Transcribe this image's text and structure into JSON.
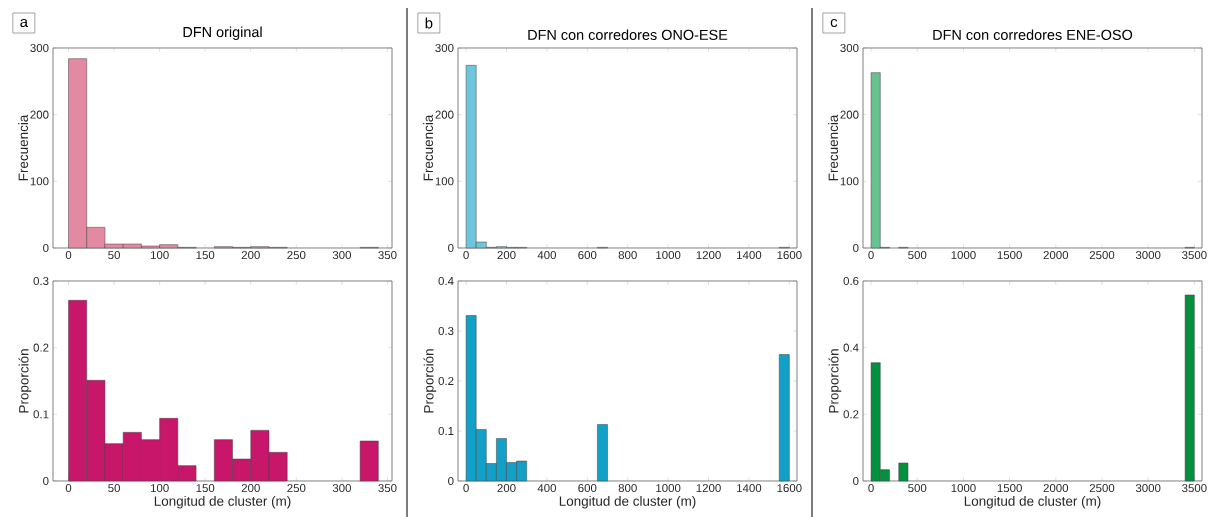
{
  "chart_data": [
    {
      "type": "histogram",
      "title": "DFN original",
      "annotations": [
        "a"
      ],
      "ylabel": "Frecuencia",
      "color": "#e38aa2",
      "bins": [
        0,
        20,
        40,
        60,
        80,
        100,
        120,
        140,
        160,
        180,
        200,
        220,
        240,
        260,
        280,
        300,
        320,
        340
      ],
      "values": [
        284,
        31,
        6,
        6,
        3,
        5,
        1,
        0,
        2,
        1,
        2,
        1,
        0,
        0,
        0,
        0,
        1
      ],
      "xlim": [
        -17,
        355
      ],
      "ylim": [
        0,
        300
      ],
      "xticks": [
        0,
        50,
        100,
        150,
        200,
        250,
        300,
        350
      ],
      "yticks": [
        0,
        100,
        200,
        300
      ]
    },
    {
      "type": "histogram",
      "title": "DFN con corredores ONO-ESE",
      "annotations": [
        "b"
      ],
      "ylabel": "Frecuencia",
      "color": "#6ec6dd",
      "bins": [
        0,
        50,
        100,
        150,
        200,
        250,
        300,
        350,
        400,
        450,
        500,
        550,
        600,
        650,
        700,
        750,
        800,
        850,
        900,
        950,
        1000,
        1050,
        1100,
        1150,
        1200,
        1250,
        1300,
        1350,
        1400,
        1450,
        1500,
        1550,
        1600
      ],
      "values": [
        274,
        9,
        1,
        2,
        1,
        1,
        0,
        0,
        0,
        0,
        0,
        0,
        0,
        1,
        0,
        0,
        0,
        0,
        0,
        0,
        0,
        0,
        0,
        0,
        0,
        0,
        0,
        0,
        0,
        0,
        0,
        1
      ],
      "xlim": [
        -40,
        1638
      ],
      "ylim": [
        0,
        300
      ],
      "xticks": [
        0,
        200,
        400,
        600,
        800,
        1000,
        1200,
        1400,
        1600
      ],
      "yticks": [
        0,
        100,
        200,
        300
      ]
    },
    {
      "type": "histogram",
      "title": "DFN con corredores ENE-OSO",
      "annotations": [
        "c"
      ],
      "ylabel": "Frecuencia",
      "color": "#66c28f",
      "bins": [
        0,
        100,
        200,
        300,
        400,
        500,
        600,
        700,
        800,
        900,
        1000,
        1100,
        1200,
        1300,
        1400,
        1500,
        1600,
        1700,
        1800,
        1900,
        2000,
        2100,
        2200,
        2300,
        2400,
        2500,
        2600,
        2700,
        2800,
        2900,
        3000,
        3100,
        3200,
        3300,
        3400,
        3500
      ],
      "values": [
        263,
        1,
        0,
        1,
        0,
        0,
        0,
        0,
        0,
        0,
        0,
        0,
        0,
        0,
        0,
        0,
        0,
        0,
        0,
        0,
        0,
        0,
        0,
        0,
        0,
        0,
        0,
        0,
        0,
        0,
        0,
        0,
        0,
        0,
        1
      ],
      "xlim": [
        -87,
        3583
      ],
      "ylim": [
        0,
        300
      ],
      "xticks": [
        0,
        500,
        1000,
        1500,
        2000,
        2500,
        3000,
        3500
      ],
      "yticks": [
        0,
        100,
        200,
        300
      ]
    },
    {
      "type": "histogram",
      "xlabel": "Longitud de cluster (m)",
      "ylabel": "Proporción",
      "color": "#c8166b",
      "bins": [
        0,
        20,
        40,
        60,
        80,
        100,
        120,
        140,
        160,
        180,
        200,
        220,
        240,
        260,
        280,
        300,
        320,
        340
      ],
      "values": [
        0.271,
        0.151,
        0.056,
        0.073,
        0.062,
        0.094,
        0.023,
        0,
        0.062,
        0.033,
        0.076,
        0.043,
        0,
        0,
        0,
        0,
        0.06
      ],
      "xlim": [
        -17,
        355
      ],
      "ylim": [
        0,
        0.3
      ],
      "xticks": [
        0,
        50,
        100,
        150,
        200,
        250,
        300,
        350
      ],
      "yticks": [
        0,
        0.1,
        0.2,
        0.3
      ]
    },
    {
      "type": "histogram",
      "xlabel": "Longitud de cluster (m)",
      "ylabel": "Proporción",
      "color": "#12a0c8",
      "bins": [
        0,
        50,
        100,
        150,
        200,
        250,
        300,
        350,
        400,
        450,
        500,
        550,
        600,
        650,
        700,
        750,
        800,
        850,
        900,
        950,
        1000,
        1050,
        1100,
        1150,
        1200,
        1250,
        1300,
        1350,
        1400,
        1450,
        1500,
        1550,
        1600
      ],
      "values": [
        0.331,
        0.103,
        0.035,
        0.085,
        0.037,
        0.04,
        0,
        0,
        0,
        0,
        0,
        0,
        0,
        0.113,
        0,
        0,
        0,
        0,
        0,
        0,
        0,
        0,
        0,
        0,
        0,
        0,
        0,
        0,
        0,
        0,
        0,
        0.253
      ],
      "xlim": [
        -40,
        1638
      ],
      "ylim": [
        0,
        0.4
      ],
      "xticks": [
        0,
        200,
        400,
        600,
        800,
        1000,
        1200,
        1400,
        1600
      ],
      "yticks": [
        0,
        0.1,
        0.2,
        0.3,
        0.4
      ]
    },
    {
      "type": "histogram",
      "xlabel": "Longitud de cluster (m)",
      "ylabel": "Proporción",
      "color": "#03903f",
      "bins": [
        0,
        100,
        200,
        300,
        400,
        500,
        600,
        700,
        800,
        900,
        1000,
        1100,
        1200,
        1300,
        1400,
        1500,
        1600,
        1700,
        1800,
        1900,
        2000,
        2100,
        2200,
        2300,
        2400,
        2500,
        2600,
        2700,
        2800,
        2900,
        3000,
        3100,
        3200,
        3300,
        3400,
        3500
      ],
      "values": [
        0.355,
        0.034,
        0,
        0.054,
        0,
        0,
        0,
        0,
        0,
        0,
        0,
        0,
        0,
        0,
        0,
        0,
        0,
        0,
        0,
        0,
        0,
        0,
        0,
        0,
        0,
        0,
        0,
        0,
        0,
        0,
        0,
        0,
        0,
        0,
        0.558
      ],
      "xlim": [
        -87,
        3583
      ],
      "ylim": [
        0,
        0.6
      ],
      "xticks": [
        0,
        500,
        1000,
        1500,
        2000,
        2500,
        3000,
        3500
      ],
      "yticks": [
        0,
        0.2,
        0.4,
        0.6
      ]
    }
  ]
}
